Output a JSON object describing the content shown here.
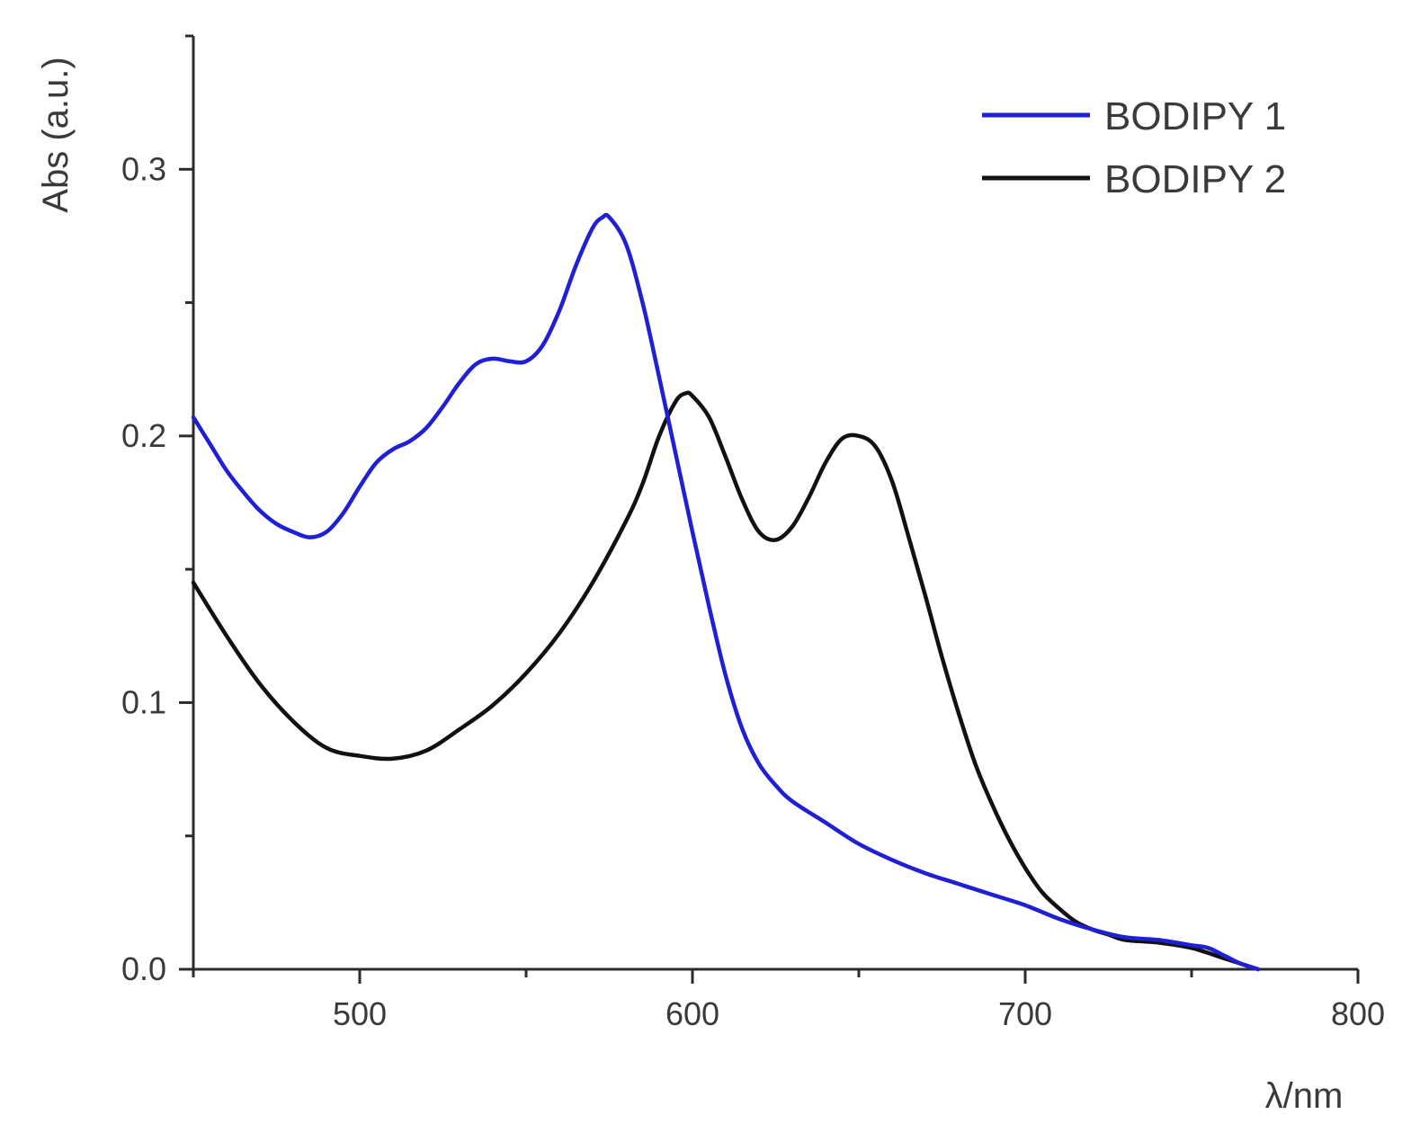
{
  "chart_data": {
    "type": "line",
    "title": "",
    "xlabel": "λ/nm",
    "ylabel": "Abs (a.u.)",
    "xlim": [
      450,
      800
    ],
    "ylim": [
      0,
      0.35
    ],
    "x_ticks": [
      500,
      600,
      700,
      800
    ],
    "x_tick_labels": [
      "500",
      "600",
      "700",
      "800"
    ],
    "y_ticks": [
      0.0,
      0.1,
      0.2,
      0.3
    ],
    "y_tick_labels": [
      "0.0",
      "0.1",
      "0.2",
      "0.3"
    ],
    "grid": false,
    "legend_position": "top-right",
    "series": [
      {
        "name": "BODIPY 1",
        "color": "#1f1fd6",
        "points": [
          [
            450,
            0.207
          ],
          [
            455,
            0.197
          ],
          [
            460,
            0.187
          ],
          [
            465,
            0.179
          ],
          [
            470,
            0.172
          ],
          [
            475,
            0.167
          ],
          [
            480,
            0.164
          ],
          [
            485,
            0.162
          ],
          [
            490,
            0.164
          ],
          [
            495,
            0.171
          ],
          [
            500,
            0.181
          ],
          [
            505,
            0.19
          ],
          [
            510,
            0.195
          ],
          [
            515,
            0.198
          ],
          [
            520,
            0.203
          ],
          [
            525,
            0.211
          ],
          [
            530,
            0.22
          ],
          [
            535,
            0.227
          ],
          [
            540,
            0.229
          ],
          [
            545,
            0.228
          ],
          [
            550,
            0.228
          ],
          [
            555,
            0.234
          ],
          [
            560,
            0.247
          ],
          [
            565,
            0.264
          ],
          [
            570,
            0.278
          ],
          [
            573,
            0.282
          ],
          [
            575,
            0.282
          ],
          [
            580,
            0.272
          ],
          [
            585,
            0.25
          ],
          [
            590,
            0.222
          ],
          [
            595,
            0.193
          ],
          [
            600,
            0.164
          ],
          [
            605,
            0.136
          ],
          [
            610,
            0.11
          ],
          [
            615,
            0.09
          ],
          [
            620,
            0.077
          ],
          [
            625,
            0.069
          ],
          [
            630,
            0.063
          ],
          [
            640,
            0.055
          ],
          [
            650,
            0.047
          ],
          [
            660,
            0.041
          ],
          [
            670,
            0.036
          ],
          [
            680,
            0.032
          ],
          [
            690,
            0.028
          ],
          [
            700,
            0.024
          ],
          [
            710,
            0.019
          ],
          [
            720,
            0.015
          ],
          [
            730,
            0.012
          ],
          [
            740,
            0.011
          ],
          [
            750,
            0.009
          ],
          [
            755,
            0.008
          ],
          [
            760,
            0.005
          ],
          [
            765,
            0.002
          ],
          [
            770,
            0.0
          ]
        ]
      },
      {
        "name": "BODIPY 2",
        "color": "#111111",
        "points": [
          [
            450,
            0.145
          ],
          [
            460,
            0.125
          ],
          [
            470,
            0.107
          ],
          [
            480,
            0.093
          ],
          [
            490,
            0.083
          ],
          [
            500,
            0.08
          ],
          [
            510,
            0.079
          ],
          [
            520,
            0.082
          ],
          [
            530,
            0.09
          ],
          [
            540,
            0.099
          ],
          [
            550,
            0.111
          ],
          [
            560,
            0.126
          ],
          [
            570,
            0.145
          ],
          [
            580,
            0.168
          ],
          [
            585,
            0.182
          ],
          [
            590,
            0.2
          ],
          [
            595,
            0.213
          ],
          [
            598,
            0.216
          ],
          [
            600,
            0.215
          ],
          [
            605,
            0.207
          ],
          [
            610,
            0.192
          ],
          [
            615,
            0.176
          ],
          [
            620,
            0.164
          ],
          [
            625,
            0.161
          ],
          [
            630,
            0.166
          ],
          [
            635,
            0.177
          ],
          [
            640,
            0.19
          ],
          [
            645,
            0.199
          ],
          [
            650,
            0.2
          ],
          [
            655,
            0.196
          ],
          [
            660,
            0.183
          ],
          [
            665,
            0.162
          ],
          [
            670,
            0.14
          ],
          [
            675,
            0.117
          ],
          [
            680,
            0.096
          ],
          [
            685,
            0.077
          ],
          [
            690,
            0.062
          ],
          [
            695,
            0.049
          ],
          [
            700,
            0.038
          ],
          [
            705,
            0.029
          ],
          [
            710,
            0.023
          ],
          [
            715,
            0.018
          ],
          [
            720,
            0.015
          ],
          [
            725,
            0.013
          ],
          [
            730,
            0.011
          ],
          [
            740,
            0.01
          ],
          [
            750,
            0.008
          ],
          [
            760,
            0.004
          ],
          [
            770,
            0.0
          ]
        ]
      }
    ]
  }
}
